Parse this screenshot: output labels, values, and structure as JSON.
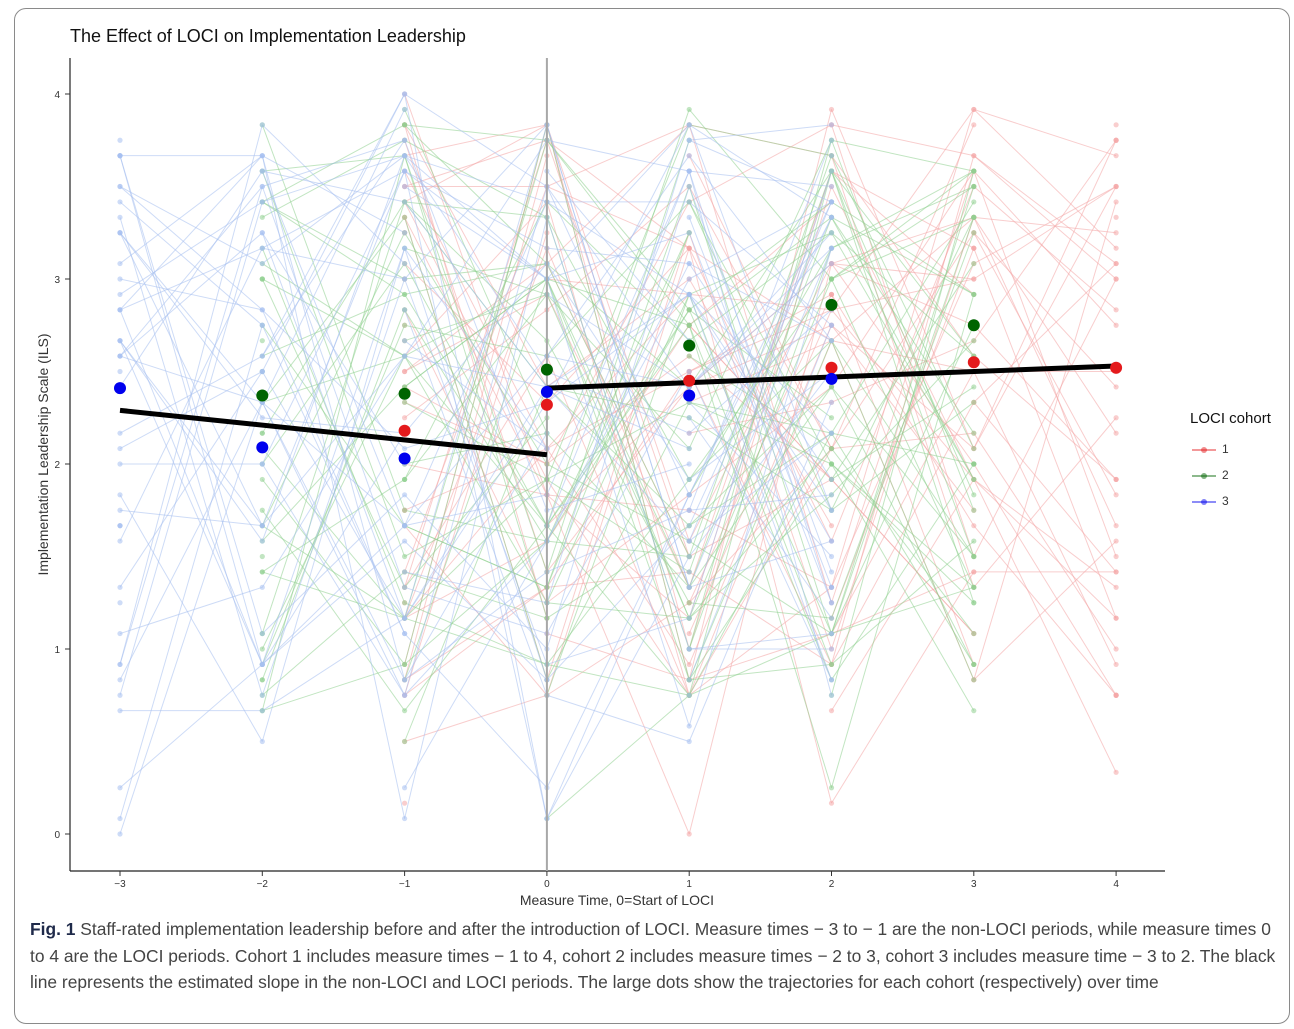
{
  "chart_data": {
    "type": "scatter",
    "title": "The Effect of LOCI on Implementation Leadership",
    "xlabel": "Measure Time, 0=Start of LOCI",
    "ylabel": "Implementation Leadership Scale (ILS)",
    "xlim": [
      -3,
      4
    ],
    "ylim": [
      0,
      4
    ],
    "x_ticks": [
      -3,
      -2,
      -1,
      0,
      1,
      2,
      3,
      4
    ],
    "x_tick_labels": [
      "−3",
      "−2",
      "−1",
      "0",
      "1",
      "2",
      "3",
      "4"
    ],
    "y_ticks": [
      0,
      1,
      2,
      3,
      4
    ],
    "y_tick_labels": [
      "0",
      "1",
      "2",
      "3",
      "4"
    ],
    "grid": false,
    "legend_title": "LOCI cohort",
    "legend_position": "right",
    "vertical_reference_x": 0,
    "series": [
      {
        "name": "1",
        "color": "#e41a1c",
        "light_color": "#f4a6a6",
        "x": [
          -1,
          0,
          1,
          2,
          3,
          4
        ],
        "y": [
          2.18,
          2.32,
          2.45,
          2.52,
          2.55,
          2.52
        ]
      },
      {
        "name": "2",
        "color": "#006400",
        "light_color": "#8fd08f",
        "x": [
          -2,
          -1,
          0,
          1,
          2,
          3
        ],
        "y": [
          2.37,
          2.38,
          2.51,
          2.64,
          2.86,
          2.75
        ]
      },
      {
        "name": "3",
        "color": "#0000ee",
        "light_color": "#a6bff0",
        "x": [
          -3,
          -2,
          -1,
          0,
          1,
          2
        ],
        "y": [
          2.41,
          2.09,
          2.03,
          2.39,
          2.37,
          2.46
        ]
      }
    ],
    "slope_lines": [
      {
        "period": "non-LOCI",
        "x": [
          -3,
          0
        ],
        "y": [
          2.29,
          2.05
        ]
      },
      {
        "period": "LOCI",
        "x": [
          0,
          4
        ],
        "y": [
          2.41,
          2.53
        ]
      }
    ]
  },
  "caption": {
    "label": "Fig. 1",
    "text": "Staff-rated implementation leadership before and after the introduction of LOCI. Measure times − 3 to − 1 are the non-LOCI periods, while measure times 0 to 4 are the LOCI periods. Cohort 1 includes measure times − 1 to 4, cohort 2 includes measure times − 2 to 3, cohort 3 includes measure time − 3 to 2. The black line represents the estimated slope in the non-LOCI and LOCI periods. The large dots show the trajectories for each cohort (respectively) over time"
  }
}
